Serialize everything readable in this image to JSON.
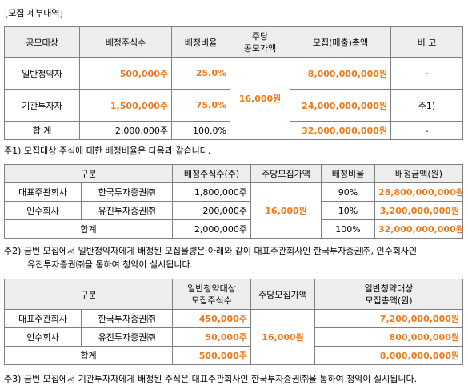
{
  "section_title": "[모집 세부내역]",
  "t1": {
    "headers": [
      "공모대상",
      "배정주식수",
      "배정비율",
      "주당\n공모가액",
      "모집(매출)총액",
      "비 고"
    ],
    "rows": [
      {
        "target": "일반청약자",
        "shares": "500,000주",
        "ratio": "25.0%",
        "total": "8,000,000,000원",
        "note": "-"
      },
      {
        "target": "기관투자자",
        "shares": "1,500,000주",
        "ratio": "75.0%",
        "total": "24,000,000,000원",
        "note": "주1)"
      },
      {
        "target": "합 계",
        "shares": "2,000,000주",
        "ratio": "100.0%",
        "total": "32,000,000,000원",
        "note": "-"
      }
    ],
    "price": "16,000원"
  },
  "note1": "주1) 모집대상 주식에 대한 배정비율은 다음과 같습니다.",
  "t2": {
    "headers": [
      "구분",
      "배정주식수(주)",
      "주당모집가액",
      "배정비율",
      "배정금액(원)"
    ],
    "rows": [
      {
        "role": "대표주관회사",
        "firm": "한국투자증권㈜",
        "shares": "1,800,000주",
        "ratio": "90%",
        "amount": "28,800,000,000원"
      },
      {
        "role": "인수회사",
        "firm": "유진투자증권㈜",
        "shares": "200,000주",
        "ratio": "10%",
        "amount": "3,200,000,000원"
      }
    ],
    "total": {
      "label": "합계",
      "shares": "2,000,000주",
      "ratio": "100%",
      "amount": "32,000,000,000원"
    },
    "price": "16,000원"
  },
  "note2_line1": "주2) 금번 모집에서 일반청약자에게 배정된 모집물량은 아래와 같이 대표주관회사인 한국투자증권㈜, 인수회사인",
  "note2_line2": "유진투자증권㈜을 통하여 청약이 실시됩니다.",
  "t3": {
    "headers": [
      "구분",
      "일반청약대상\n모집주식수",
      "주당모집가액",
      "일반청약대상\n모집총액(원)"
    ],
    "rows": [
      {
        "role": "대표주관회사",
        "firm": "한국투자증권㈜",
        "shares": "450,000주",
        "amount": "7,200,000,000원"
      },
      {
        "role": "인수회사",
        "firm": "유진투자증권㈜",
        "shares": "50,000주",
        "amount": "800,000,000원"
      }
    ],
    "total": {
      "label": "합계",
      "shares": "500,000주",
      "amount": "8,000,000,000원"
    },
    "price": "16,000원"
  },
  "note3": "주3) 금번 모집에서 기관투자자에게 배정된 주식은 대표주관회사인 한국투자증권㈜을 통하여 청약이 실시됩니다.",
  "accent_color": "#f07a1a",
  "header_bg": "#ededed"
}
